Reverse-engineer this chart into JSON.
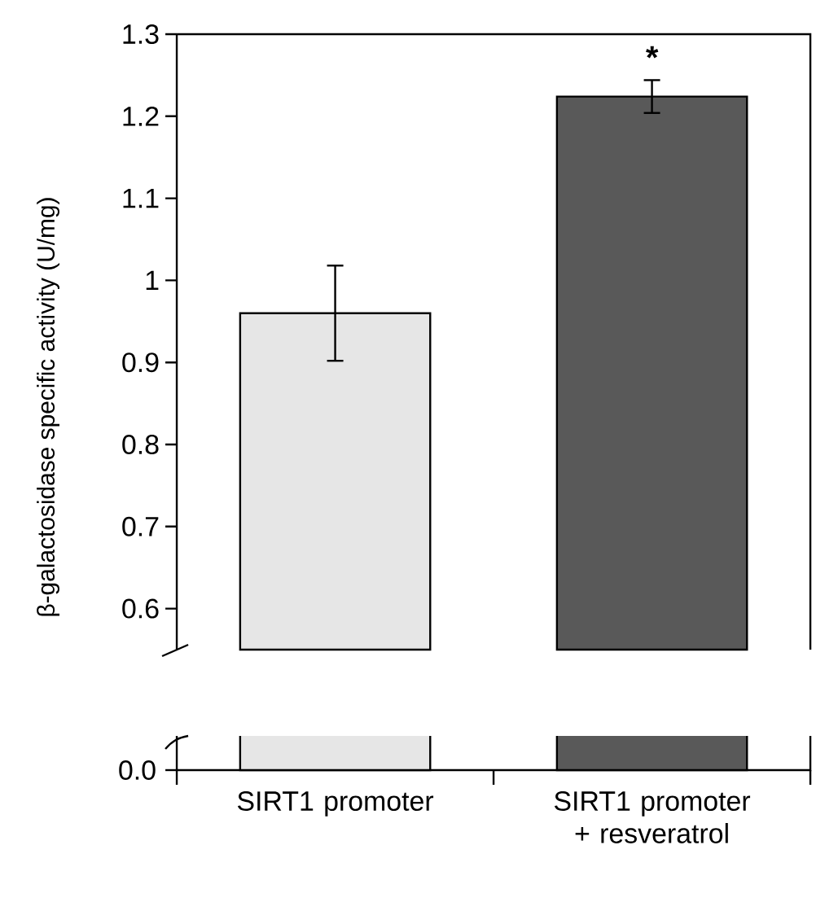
{
  "chart_data": {
    "type": "bar",
    "ylabel": "β-galactosidase specific activity (U/mg)",
    "categories": [
      "SIRT1 promoter",
      "SIRT1 promoter + resveratrol"
    ],
    "values": [
      0.96,
      1.224
    ],
    "errors": [
      0.058,
      0.02
    ],
    "colors": [
      "#e6e6e6",
      "#595959"
    ],
    "ylim": [
      0.55,
      1.3
    ],
    "yticks": [
      0.6,
      0.7,
      0.8,
      0.9,
      1,
      1.1,
      1.2,
      1.3
    ],
    "annotations": [
      "*",
      "0.0"
    ]
  }
}
